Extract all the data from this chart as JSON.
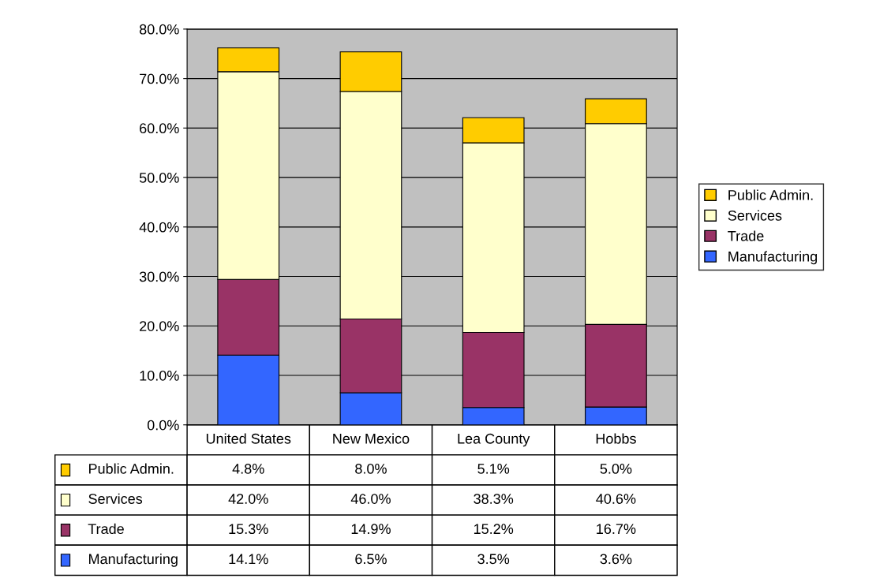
{
  "chart_data": {
    "type": "bar",
    "stacked": true,
    "categories": [
      "United States",
      "New Mexico",
      "Lea County",
      "Hobbs"
    ],
    "series": [
      {
        "name": "Manufacturing",
        "color": "#3366ff",
        "values": [
          14.1,
          6.5,
          3.5,
          3.6
        ],
        "value_labels": [
          "14.1%",
          "6.5%",
          "3.5%",
          "3.6%"
        ]
      },
      {
        "name": "Trade",
        "color": "#993366",
        "values": [
          15.3,
          14.9,
          15.2,
          16.7
        ],
        "value_labels": [
          "15.3%",
          "14.9%",
          "15.2%",
          "16.7%"
        ]
      },
      {
        "name": "Services",
        "color": "#ffffcc",
        "values": [
          42.0,
          46.0,
          38.3,
          40.6
        ],
        "value_labels": [
          "42.0%",
          "46.0%",
          "38.3%",
          "40.6%"
        ]
      },
      {
        "name": "Public Admin.",
        "color": "#ffcc00",
        "values": [
          4.8,
          8.0,
          5.1,
          5.0
        ],
        "value_labels": [
          "4.8%",
          "8.0%",
          "5.1%",
          "5.0%"
        ]
      }
    ],
    "ylim": [
      0,
      80
    ],
    "yticks": [
      {
        "value": 0,
        "label": "0.0%"
      },
      {
        "value": 10,
        "label": "10.0%"
      },
      {
        "value": 20,
        "label": "20.0%"
      },
      {
        "value": 30,
        "label": "30.0%"
      },
      {
        "value": 40,
        "label": "40.0%"
      },
      {
        "value": 50,
        "label": "50.0%"
      },
      {
        "value": 60,
        "label": "60.0%"
      },
      {
        "value": 70,
        "label": "70.0%"
      },
      {
        "value": 80,
        "label": "80.0%"
      }
    ],
    "grid": "y",
    "legend": "right"
  }
}
